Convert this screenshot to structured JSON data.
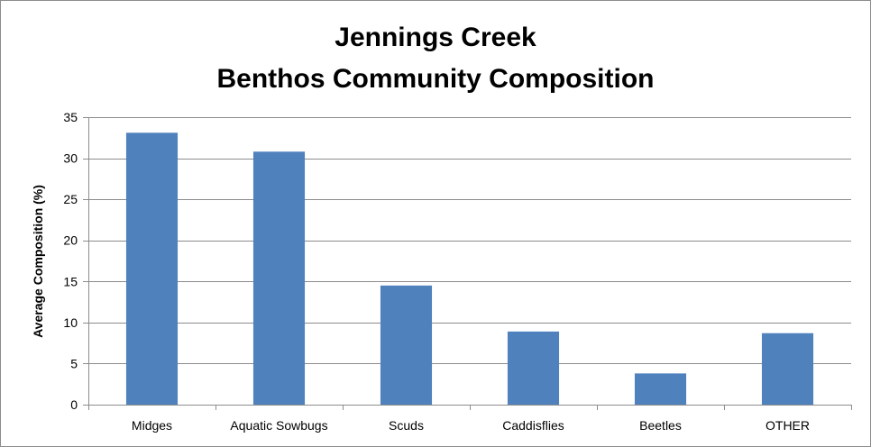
{
  "chart_data": {
    "type": "bar",
    "title_lines": [
      "Jennings Creek",
      "Benthos Community Composition"
    ],
    "xlabel": "",
    "ylabel": "Average Composition (%)",
    "categories": [
      "Midges",
      "Aquatic Sowbugs",
      "Scuds",
      "Caddisflies",
      "Beetles",
      "OTHER"
    ],
    "values": [
      33.1,
      30.8,
      14.5,
      8.9,
      3.8,
      8.7
    ],
    "ylim": [
      0,
      35
    ],
    "yticks": [
      0,
      5,
      10,
      15,
      20,
      25,
      30,
      35
    ],
    "grid": true,
    "legend": "none",
    "colors": {
      "bar": "#4f81bd",
      "grid": "#8c8c8c",
      "axis": "#8c8c8c",
      "border": "#8c8c8c"
    }
  }
}
